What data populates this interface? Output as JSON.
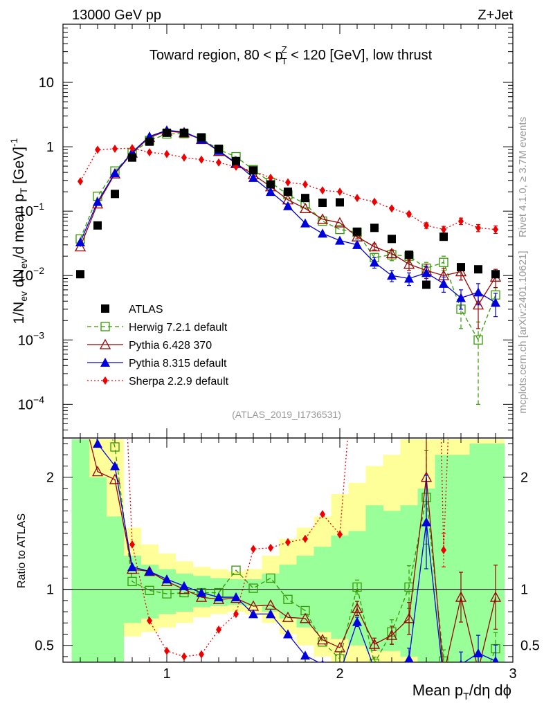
{
  "header": {
    "left": "13000 GeV pp",
    "right": "Z+Jet"
  },
  "side": {
    "rivet": "Rivet 4.1.0, ≥ 3.7M events",
    "mcplots": "mcplots.cern.ch [arXiv:2401.10621]"
  },
  "chart_data": {
    "type": "scatter",
    "title": "Toward region, 80 < p_T^Z < 120 [GeV], low thrust",
    "title_parts": {
      "a": "Toward region, 80 < p",
      "sub": "T",
      "sup": "Z",
      "b": " < 120 [GeV], low thrust"
    },
    "analysis": "(ATLAS_2019_I1736531)",
    "xlabel": "Mean p_T/dη dϕ",
    "xlabel_parts": {
      "a": "Mean p",
      "sub": "T",
      "b": "/dη dϕ"
    },
    "ylabel": "1/N_ev dN_ev/d mean p_T [GeV]^-1",
    "ylabel_parts": {
      "a": "1/N",
      "s1": "ev",
      "b": " dN",
      "s2": "ev",
      "c": "/d mean p",
      "s3": "T",
      "d": " [GeV]",
      "sup": "-1"
    },
    "ratio_ylabel": "Ratio to ATLAS",
    "xlim": [
      0.4,
      3.0
    ],
    "ylim": [
      3e-05,
      80
    ],
    "ratio_ylim": [
      0.35,
      2.35
    ],
    "x_ticks": [
      {
        "v": 1,
        "label": "1"
      },
      {
        "v": 2,
        "label": "2"
      },
      {
        "v": 3,
        "label": "3"
      }
    ],
    "y_ticks": [
      {
        "v": 0.0001,
        "base": "10",
        "exp": "−4"
      },
      {
        "v": 0.001,
        "base": "10",
        "exp": "−3"
      },
      {
        "v": 0.01,
        "base": "10",
        "exp": "−2"
      },
      {
        "v": 0.1,
        "base": "10",
        "exp": "−1"
      },
      {
        "v": 1,
        "base": "1",
        "exp": ""
      },
      {
        "v": 10,
        "base": "10",
        "exp": ""
      }
    ],
    "ratio_ticks": [
      {
        "v": 0.5,
        "label": "0.5"
      },
      {
        "v": 1,
        "label": "1"
      },
      {
        "v": 2,
        "label": "2"
      }
    ],
    "x": [
      0.5,
      0.6,
      0.7,
      0.8,
      0.9,
      1.0,
      1.1,
      1.2,
      1.3,
      1.4,
      1.5,
      1.6,
      1.7,
      1.8,
      1.9,
      2.0,
      2.1,
      2.2,
      2.3,
      2.4,
      2.5,
      2.6,
      2.7,
      2.8,
      2.9
    ],
    "band_edges": [
      0.45,
      0.55,
      0.65,
      0.75,
      0.85,
      0.95,
      1.05,
      1.15,
      1.25,
      1.35,
      1.45,
      1.55,
      1.65,
      1.75,
      1.85,
      1.95,
      2.05,
      2.15,
      2.25,
      2.35,
      2.45,
      2.55,
      2.65,
      2.75,
      2.85,
      2.95
    ],
    "band_green": [
      [
        0.35,
        2.35
      ],
      [
        0.35,
        2.0
      ],
      [
        0.35,
        1.65
      ],
      [
        0.7,
        1.3
      ],
      [
        0.74,
        1.22
      ],
      [
        0.78,
        1.18
      ],
      [
        0.8,
        1.14
      ],
      [
        0.84,
        1.12
      ],
      [
        0.85,
        1.1
      ],
      [
        0.86,
        1.09
      ],
      [
        0.85,
        1.09
      ],
      [
        0.8,
        1.14
      ],
      [
        0.74,
        1.22
      ],
      [
        0.66,
        1.3
      ],
      [
        0.62,
        1.38
      ],
      [
        0.56,
        1.48
      ],
      [
        0.5,
        1.52
      ],
      [
        0.45,
        1.75
      ],
      [
        0.45,
        1.7
      ],
      [
        0.4,
        1.75
      ],
      [
        0.35,
        1.9
      ],
      [
        0.35,
        2.2
      ],
      [
        0.35,
        2.2
      ],
      [
        0.35,
        2.3
      ],
      [
        0.35,
        2.3
      ]
    ],
    "band_yellow": [
      [
        0.35,
        2.35
      ],
      [
        0.35,
        2.35
      ],
      [
        0.42,
        2.35
      ],
      [
        0.58,
        1.55
      ],
      [
        0.62,
        1.4
      ],
      [
        0.66,
        1.32
      ],
      [
        0.7,
        1.25
      ],
      [
        0.75,
        1.2
      ],
      [
        0.78,
        1.18
      ],
      [
        0.8,
        1.16
      ],
      [
        0.78,
        1.18
      ],
      [
        0.7,
        1.3
      ],
      [
        0.6,
        1.45
      ],
      [
        0.5,
        1.55
      ],
      [
        0.4,
        1.65
      ],
      [
        0.35,
        1.85
      ],
      [
        0.35,
        1.95
      ],
      [
        0.35,
        2.1
      ],
      [
        0.35,
        2.2
      ],
      [
        0.35,
        2.35
      ],
      [
        0.35,
        2.35
      ],
      [
        0.35,
        2.35
      ],
      [
        0.35,
        2.35
      ],
      [
        0.35,
        2.35
      ],
      [
        0.35,
        2.35
      ]
    ],
    "series": [
      {
        "name": "ATLAS",
        "legend": "ATLAS",
        "color": "#000000",
        "marker": "square-filled",
        "values": [
          0.0105,
          0.06,
          0.185,
          0.68,
          1.2,
          1.65,
          1.65,
          1.4,
          0.93,
          0.6,
          0.43,
          0.26,
          0.2,
          0.16,
          0.135,
          0.137,
          0.048,
          0.055,
          0.037,
          0.021,
          0.0072,
          0.04,
          0.0135,
          0.0125,
          0.0105
        ]
      },
      {
        "name": "Herwig",
        "legend": "Herwig 7.2.1 default",
        "color": "#339900",
        "marker": "square-open",
        "dash": "6,4",
        "values": [
          0.037,
          0.17,
          0.42,
          0.8,
          1.25,
          1.58,
          1.6,
          1.35,
          0.9,
          0.7,
          0.44,
          0.28,
          0.18,
          0.13,
          0.07,
          0.052,
          0.047,
          0.019,
          0.021,
          0.02,
          0.013,
          0.016,
          0.003,
          0.001,
          0.005
        ],
        "errors": [
          0,
          0,
          0,
          0,
          0,
          0,
          0,
          0,
          0,
          0,
          0,
          0,
          0,
          0,
          0,
          0,
          0.003,
          0.003,
          0.004,
          0.004,
          0.003,
          0.004,
          0.0015,
          0.0009,
          0.0015
        ],
        "ratio": [
          3.5,
          2.8,
          2.27,
          1.07,
          0.99,
          0.96,
          0.97,
          0.97,
          0.97,
          1.17,
          1.01,
          1.1,
          0.91,
          0.81,
          0.53,
          0.38,
          1.02,
          0.34,
          0.62,
          1.02,
          1.82,
          0.36,
          0.21,
          0.07,
          0.47
        ]
      },
      {
        "name": "Pythia6",
        "legend": "Pythia 6.428 370",
        "color": "#990000",
        "marker": "triangle-open",
        "dash": "",
        "values": [
          0.028,
          0.13,
          0.38,
          0.8,
          1.4,
          1.75,
          1.65,
          1.3,
          0.85,
          0.55,
          0.37,
          0.24,
          0.15,
          0.11,
          0.075,
          0.066,
          0.04,
          0.028,
          0.022,
          0.015,
          0.012,
          0.01,
          0.0115,
          0.0035,
          0.0095
        ],
        "errors": [
          0,
          0,
          0,
          0,
          0,
          0,
          0,
          0,
          0,
          0,
          0,
          0,
          0,
          0,
          0,
          0,
          0.003,
          0.003,
          0.003,
          0.003,
          0.003,
          0.003,
          0.003,
          0.002,
          0.003
        ],
        "ratio": [
          2.67,
          2.05,
          1.98,
          1.18,
          1.16,
          1.07,
          1.0,
          0.93,
          0.91,
          0.92,
          0.85,
          0.86,
          0.75,
          0.74,
          0.55,
          0.48,
          0.83,
          0.51,
          0.59,
          0.74,
          2.0,
          0.24,
          0.93,
          0.28,
          0.93
        ]
      },
      {
        "name": "Pythia8",
        "legend": "Pythia 8.315 default",
        "color": "#0000dd",
        "marker": "triangle-filled",
        "dash": "",
        "values": [
          0.033,
          0.14,
          0.39,
          0.82,
          1.45,
          1.8,
          1.7,
          1.3,
          0.87,
          0.56,
          0.33,
          0.2,
          0.12,
          0.065,
          0.045,
          0.035,
          0.03,
          0.016,
          0.01,
          0.009,
          0.011,
          0.0075,
          0.0045,
          0.0055,
          0.0038
        ],
        "errors": [
          0,
          0,
          0,
          0,
          0,
          0,
          0,
          0,
          0,
          0,
          0,
          0,
          0,
          0,
          0,
          0,
          0.002,
          0.003,
          0.002,
          0.002,
          0.003,
          0.002,
          0.0015,
          0.002,
          0.0015
        ],
        "ratio": [
          3.1,
          2.3,
          2.1,
          1.2,
          1.16,
          1.09,
          1.03,
          0.97,
          0.93,
          0.93,
          0.78,
          0.78,
          0.6,
          0.41,
          0.33,
          0.25,
          0.71,
          0.29,
          0.27,
          0.38,
          1.6,
          0.19,
          0.33,
          0.43,
          0.36
        ]
      },
      {
        "name": "Sherpa",
        "legend": "Sherpa 2.2.9 default",
        "color": "#ee0000",
        "marker": "diamond-filled",
        "dash": "2,3",
        "values": [
          0.29,
          0.9,
          0.93,
          0.95,
          0.82,
          0.77,
          0.68,
          0.63,
          0.57,
          0.49,
          0.42,
          0.33,
          0.28,
          0.26,
          0.21,
          0.2,
          0.16,
          0.14,
          0.11,
          0.09,
          0.06,
          0.052,
          0.07,
          0.055,
          0.052
        ],
        "errors": [
          0,
          0,
          0,
          0,
          0,
          0,
          0,
          0,
          0,
          0,
          0,
          0,
          0,
          0,
          0,
          0,
          0.005,
          0.005,
          0.005,
          0.006,
          0.006,
          0.006,
          0.008,
          0.007,
          0.007
        ],
        "ratio": [
          27,
          15,
          5,
          1.4,
          0.72,
          0.45,
          0.4,
          0.42,
          0.64,
          0.78,
          1.36,
          1.37,
          1.42,
          1.45,
          1.67,
          1.49,
          3.4,
          2.5,
          3.0,
          4.3,
          8.3,
          1.35,
          5.2,
          4.4,
          5.0
        ]
      }
    ]
  }
}
